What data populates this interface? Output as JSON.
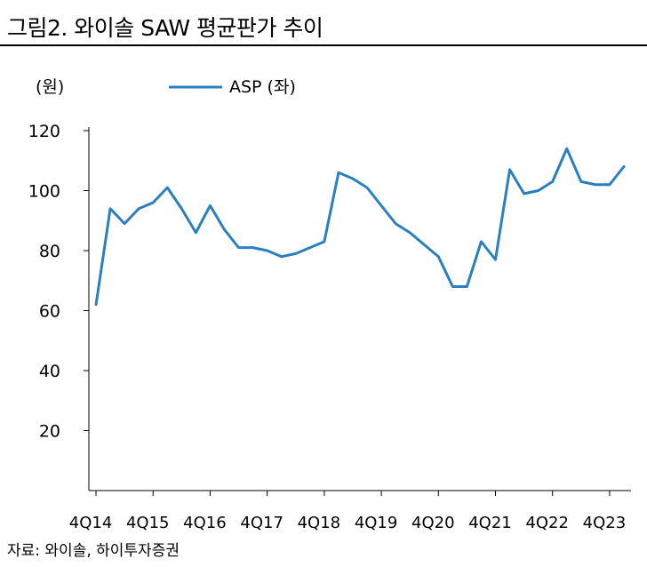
{
  "header": {
    "title": "그림2. 와이솔 SAW 평균판가 추이"
  },
  "footer": {
    "source": "자료: 와이솔, 하이투자증권"
  },
  "colors": {
    "series": "#2a7fc0",
    "axis": "#000000",
    "text": "#000000"
  },
  "chart_data": {
    "type": "line",
    "title": "그림2. 와이솔 SAW 평균판가 추이",
    "ylabel": "(원)",
    "xlabel": "",
    "ylim": [
      0,
      120
    ],
    "yticks": [
      20,
      40,
      60,
      80,
      100,
      120
    ],
    "grid": false,
    "legend": "top-left",
    "x": [
      "4Q14",
      "1Q15",
      "2Q15",
      "3Q15",
      "4Q15",
      "1Q16",
      "2Q16",
      "3Q16",
      "4Q16",
      "1Q17",
      "2Q17",
      "3Q17",
      "4Q17",
      "1Q18",
      "2Q18",
      "3Q18",
      "4Q18",
      "1Q19",
      "2Q19",
      "3Q19",
      "4Q19",
      "1Q20",
      "2Q20",
      "3Q20",
      "4Q20",
      "1Q21",
      "2Q21",
      "3Q21",
      "4Q21",
      "1Q22",
      "2Q22",
      "3Q22",
      "4Q22",
      "1Q23",
      "2Q23",
      "3Q23",
      "4Q23",
      "1Q24"
    ],
    "xtick_labels": [
      "4Q14",
      "4Q15",
      "4Q16",
      "4Q17",
      "4Q18",
      "4Q19",
      "4Q20",
      "4Q21",
      "4Q22",
      "4Q23"
    ],
    "series": [
      {
        "name": "ASP (좌)",
        "values": [
          62,
          94,
          89,
          94,
          96,
          101,
          94,
          86,
          95,
          87,
          81,
          81,
          80,
          78,
          79,
          81,
          83,
          106,
          104,
          101,
          95,
          89,
          86,
          82,
          78,
          68,
          68,
          83,
          77,
          107,
          99,
          100,
          103,
          114,
          103,
          102,
          102,
          108
        ]
      }
    ]
  }
}
